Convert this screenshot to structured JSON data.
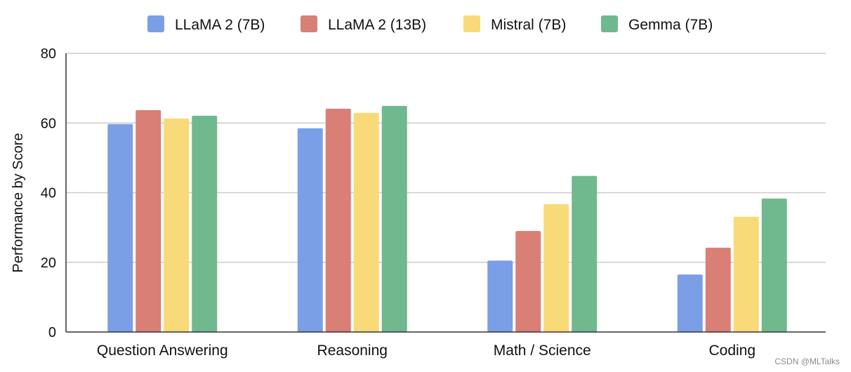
{
  "chart_data": {
    "type": "bar",
    "title": "",
    "xlabel": "",
    "ylabel": "Performance by Score",
    "ylim": [
      0,
      80
    ],
    "yticks": [
      0,
      20,
      40,
      60,
      80
    ],
    "grid": true,
    "legend_position": "top",
    "categories": [
      "Question Answering",
      "Reasoning",
      "Math / Science",
      "Coding"
    ],
    "series": [
      {
        "name": "LLaMA 2 (7B)",
        "color": "#7b9fe6",
        "values": [
          59.7,
          58.5,
          20.5,
          16.5
        ]
      },
      {
        "name": "LLaMA 2 (13B)",
        "color": "#d97f76",
        "values": [
          63.7,
          64.1,
          29.0,
          24.2
        ]
      },
      {
        "name": "Mistral (7B)",
        "color": "#f9da78",
        "values": [
          61.3,
          62.9,
          36.7,
          33.1
        ]
      },
      {
        "name": "Gemma (7B)",
        "color": "#70b98e",
        "values": [
          62.1,
          64.9,
          44.8,
          38.3
        ]
      }
    ]
  },
  "watermark": "CSDN @MLTalks"
}
